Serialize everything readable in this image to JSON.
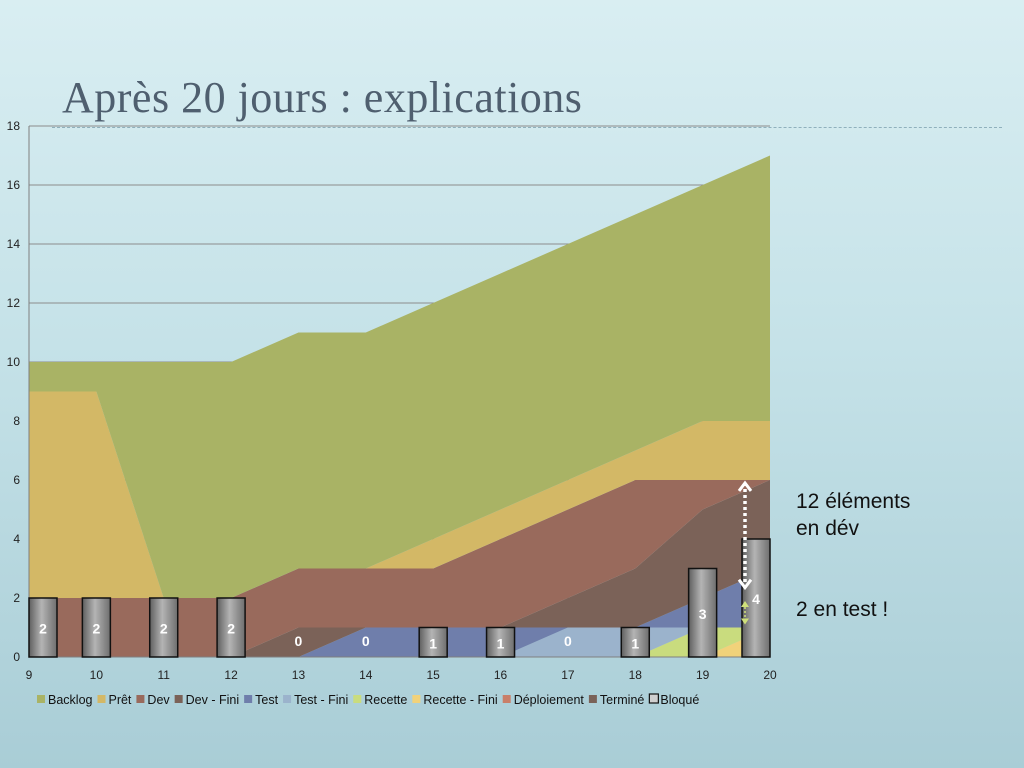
{
  "slide": {
    "title": "Après 20 jours : explications",
    "annotation_dev_line1": "12 éléments",
    "annotation_dev_line2": "en dév",
    "annotation_test": "2 en test !"
  },
  "chart_data": {
    "type": "area",
    "stacked": true,
    "title": "",
    "xlabel": "",
    "ylabel": "",
    "x": [
      9,
      10,
      11,
      12,
      13,
      14,
      15,
      16,
      17,
      18,
      19,
      20
    ],
    "ylim": [
      0,
      18
    ],
    "yticks": [
      0,
      2,
      4,
      6,
      8,
      10,
      12,
      14,
      16,
      18
    ],
    "grid": true,
    "legend_position": "bottom",
    "series": [
      {
        "name": "Terminé",
        "color": "#7a6258",
        "values": [
          0,
          0,
          0,
          0,
          0,
          0,
          0,
          0,
          0,
          0,
          0,
          0
        ]
      },
      {
        "name": "Déploiement",
        "color": "#c97f69",
        "values": [
          0,
          0,
          0,
          0,
          0,
          0,
          0,
          0,
          0,
          0,
          0,
          0
        ]
      },
      {
        "name": "Recette - Fini",
        "color": "#f1d27a",
        "values": [
          0,
          0,
          0,
          0,
          0,
          0,
          0,
          0,
          0,
          0,
          0,
          1
        ]
      },
      {
        "name": "Recette",
        "color": "#c9dc7e",
        "values": [
          0,
          0,
          0,
          0,
          0,
          0,
          0,
          0,
          0,
          0,
          1,
          0
        ]
      },
      {
        "name": "Test - Fini",
        "color": "#9bb3cc",
        "values": [
          0,
          0,
          0,
          0,
          0,
          0,
          0,
          0,
          1,
          1,
          0,
          0
        ]
      },
      {
        "name": "Test",
        "color": "#6f7eab",
        "values": [
          0,
          0,
          0,
          0,
          0,
          1,
          1,
          1,
          0,
          0,
          1,
          2
        ]
      },
      {
        "name": "Dev - Fini",
        "color": "#7b6258",
        "values": [
          0,
          0,
          0,
          0,
          1,
          0,
          0,
          0,
          1,
          2,
          3,
          3
        ]
      },
      {
        "name": "Dev",
        "color": "#996a5c",
        "values": [
          2,
          2,
          2,
          2,
          2,
          2,
          2,
          3,
          3,
          3,
          1,
          0
        ]
      },
      {
        "name": "Prêt",
        "color": "#d3b866",
        "values": [
          7,
          7,
          0,
          0,
          0,
          0,
          1,
          1,
          1,
          1,
          2,
          2
        ]
      },
      {
        "name": "Backlog",
        "color": "#a9b365",
        "values": [
          1,
          1,
          8,
          8,
          8,
          8,
          8,
          8,
          8,
          8,
          8,
          9
        ]
      }
    ],
    "legend_order": [
      "Backlog",
      "Prêt",
      "Dev",
      "Dev - Fini",
      "Test",
      "Test - Fini",
      "Recette",
      "Recette - Fini",
      "Déploiement",
      "Terminé",
      "Bloqué"
    ],
    "bar_series": {
      "name": "Bloqué",
      "values": [
        2,
        2,
        2,
        2,
        0,
        0,
        1,
        1,
        0,
        1,
        3,
        4
      ]
    }
  }
}
